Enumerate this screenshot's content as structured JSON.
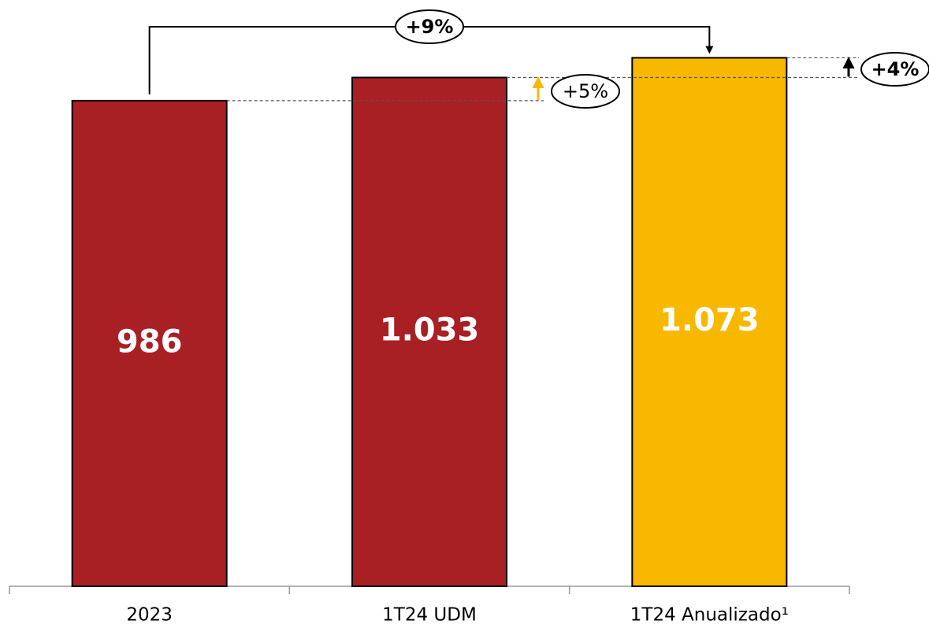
{
  "chart_data": {
    "type": "bar",
    "categories": [
      "2023",
      "1T24 UDM",
      "1T24 Anualizado¹"
    ],
    "values": [
      986,
      1033,
      1073
    ],
    "value_labels": [
      "986",
      "1.033",
      "1.073"
    ],
    "colors": [
      "#a81f24",
      "#a81f24",
      "#f8b800"
    ],
    "ylim": [
      0,
      1160
    ],
    "annotations": [
      "+9%",
      "+5%",
      "+4%"
    ]
  }
}
